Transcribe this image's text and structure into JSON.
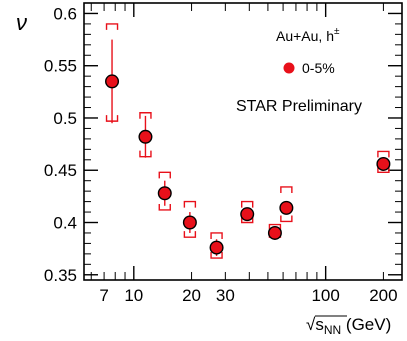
{
  "chart_data": {
    "type": "scatter",
    "xscale": "log",
    "xlim": [
      5.5,
      250
    ],
    "ylim": [
      0.345,
      0.61
    ],
    "xticks": [
      7,
      10,
      20,
      30,
      100,
      200
    ],
    "xtick_labels": [
      "7",
      "10",
      "20",
      "30",
      "100",
      "200"
    ],
    "yticks": [
      0.35,
      0.4,
      0.45,
      0.5,
      0.55,
      0.6
    ],
    "ytick_labels": [
      "0.35",
      "0.4",
      "0.45",
      "0.5",
      "0.55",
      "0.6"
    ],
    "ylabel": "ν",
    "xlabel_prefix": "√",
    "xlabel_sym": "s",
    "xlabel_sub": "NN",
    "xlabel_unit": " (GeV)",
    "annotation": "STAR Preliminary",
    "system_label": "Au+Au, h",
    "system_label_sup": "±",
    "marker_color": "#e8101a",
    "series": [
      {
        "name": "0-5%",
        "points": [
          {
            "x": 7.7,
            "y": 0.535,
            "stat": 0.04,
            "sys_lo": 0.497,
            "sys_hi": 0.59
          },
          {
            "x": 11.5,
            "y": 0.482,
            "stat": 0.02,
            "sys_lo": 0.463,
            "sys_hi": 0.505
          },
          {
            "x": 14.5,
            "y": 0.428,
            "stat": 0.012,
            "sys_lo": 0.412,
            "sys_hi": 0.448
          },
          {
            "x": 19.6,
            "y": 0.4,
            "stat": 0.01,
            "sys_lo": 0.386,
            "sys_hi": 0.42
          },
          {
            "x": 27,
            "y": 0.376,
            "stat": 0.008,
            "sys_lo": 0.366,
            "sys_hi": 0.39
          },
          {
            "x": 39,
            "y": 0.408,
            "stat": 0.005,
            "sys_lo": 0.4,
            "sys_hi": 0.42
          },
          {
            "x": 54.4,
            "y": 0.39,
            "stat": 0.006,
            "sys_lo": 0.386,
            "sys_hi": 0.398
          },
          {
            "x": 62.4,
            "y": 0.414,
            "stat": 0.005,
            "sys_lo": 0.401,
            "sys_hi": 0.434
          },
          {
            "x": 200,
            "y": 0.456,
            "stat": 0.004,
            "sys_lo": 0.448,
            "sys_hi": 0.468
          }
        ]
      }
    ]
  }
}
